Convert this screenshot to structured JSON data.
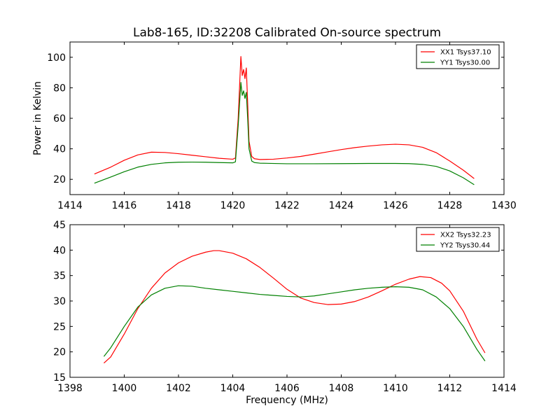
{
  "chart_data": [
    {
      "type": "line",
      "title": "Lab8-165, ID:32208 Calibrated On-source spectrum",
      "ylabel": "Power in Kelvin",
      "xlabel": "",
      "xlim": [
        1414,
        1430
      ],
      "ylim": [
        10,
        110
      ],
      "xticks": [
        1414,
        1416,
        1418,
        1420,
        1422,
        1424,
        1426,
        1428,
        1430
      ],
      "yticks": [
        20,
        40,
        60,
        80,
        100
      ],
      "legend_position": "top-right",
      "series": [
        {
          "name": "XX1 Tsys37.10",
          "color": "#ff0000",
          "points": [
            [
              1414.9,
              23.5
            ],
            [
              1415.5,
              28
            ],
            [
              1416,
              32.5
            ],
            [
              1416.5,
              36
            ],
            [
              1417,
              37.8
            ],
            [
              1417.5,
              37.6
            ],
            [
              1418,
              36.8
            ],
            [
              1418.5,
              35.8
            ],
            [
              1419,
              34.8
            ],
            [
              1419.5,
              33.8
            ],
            [
              1420,
              33.2
            ],
            [
              1420.1,
              34
            ],
            [
              1420.2,
              60
            ],
            [
              1420.3,
              100.5
            ],
            [
              1420.35,
              88
            ],
            [
              1420.4,
              92
            ],
            [
              1420.45,
              86
            ],
            [
              1420.5,
              93
            ],
            [
              1420.55,
              70
            ],
            [
              1420.6,
              45
            ],
            [
              1420.7,
              35
            ],
            [
              1420.8,
              33.5
            ],
            [
              1421,
              33
            ],
            [
              1421.5,
              33.2
            ],
            [
              1422,
              34
            ],
            [
              1422.5,
              35
            ],
            [
              1423,
              36.5
            ],
            [
              1423.5,
              38
            ],
            [
              1424,
              39.5
            ],
            [
              1424.5,
              40.8
            ],
            [
              1425,
              41.8
            ],
            [
              1425.5,
              42.6
            ],
            [
              1426,
              43
            ],
            [
              1426.5,
              42.6
            ],
            [
              1427,
              41
            ],
            [
              1427.5,
              37.5
            ],
            [
              1428,
              32
            ],
            [
              1428.5,
              26
            ],
            [
              1428.9,
              20.5
            ]
          ]
        },
        {
          "name": "YY1 Tsys30.00",
          "color": "#008000",
          "points": [
            [
              1414.9,
              17.5
            ],
            [
              1415.5,
              21.5
            ],
            [
              1416,
              25
            ],
            [
              1416.5,
              28
            ],
            [
              1417,
              29.8
            ],
            [
              1417.5,
              30.8
            ],
            [
              1418,
              31.2
            ],
            [
              1418.5,
              31.3
            ],
            [
              1419,
              31.2
            ],
            [
              1419.5,
              31
            ],
            [
              1420,
              30.8
            ],
            [
              1420.1,
              31.5
            ],
            [
              1420.2,
              55
            ],
            [
              1420.3,
              83.5
            ],
            [
              1420.35,
              75
            ],
            [
              1420.4,
              78
            ],
            [
              1420.45,
              73
            ],
            [
              1420.5,
              77
            ],
            [
              1420.55,
              60
            ],
            [
              1420.6,
              40
            ],
            [
              1420.7,
              32
            ],
            [
              1420.8,
              31
            ],
            [
              1421,
              30.6
            ],
            [
              1422,
              30.2
            ],
            [
              1423,
              30.2
            ],
            [
              1424,
              30.3
            ],
            [
              1425,
              30.4
            ],
            [
              1426,
              30.4
            ],
            [
              1426.5,
              30.3
            ],
            [
              1427,
              29.8
            ],
            [
              1427.5,
              28.5
            ],
            [
              1428,
              25.5
            ],
            [
              1428.5,
              21
            ],
            [
              1428.9,
              16.5
            ]
          ]
        }
      ]
    },
    {
      "type": "line",
      "title": "",
      "ylabel": "",
      "xlabel": "Frequency (MHz)",
      "xlim": [
        1398,
        1414
      ],
      "ylim": [
        15,
        45
      ],
      "xticks": [
        1398,
        1400,
        1402,
        1404,
        1406,
        1408,
        1410,
        1412,
        1414
      ],
      "yticks": [
        15,
        20,
        25,
        30,
        35,
        40,
        45
      ],
      "legend_position": "top-right",
      "series": [
        {
          "name": "XX2 Tsys32.23",
          "color": "#ff0000",
          "points": [
            [
              1399.25,
              17.8
            ],
            [
              1399.5,
              19
            ],
            [
              1400,
              23.5
            ],
            [
              1400.5,
              28.5
            ],
            [
              1401,
              32.5
            ],
            [
              1401.5,
              35.5
            ],
            [
              1402,
              37.5
            ],
            [
              1402.5,
              38.8
            ],
            [
              1403,
              39.6
            ],
            [
              1403.3,
              39.9
            ],
            [
              1403.5,
              39.9
            ],
            [
              1404,
              39.4
            ],
            [
              1404.5,
              38.3
            ],
            [
              1405,
              36.6
            ],
            [
              1405.5,
              34.5
            ],
            [
              1406,
              32.3
            ],
            [
              1406.5,
              30.6
            ],
            [
              1407,
              29.7
            ],
            [
              1407.5,
              29.3
            ],
            [
              1408,
              29.4
            ],
            [
              1408.5,
              29.9
            ],
            [
              1409,
              30.8
            ],
            [
              1409.5,
              32
            ],
            [
              1410,
              33.3
            ],
            [
              1410.5,
              34.3
            ],
            [
              1410.9,
              34.8
            ],
            [
              1411.3,
              34.6
            ],
            [
              1411.7,
              33.5
            ],
            [
              1412,
              32
            ],
            [
              1412.5,
              28
            ],
            [
              1413,
              22.5
            ],
            [
              1413.3,
              19.8
            ]
          ]
        },
        {
          "name": "YY2 Tsys30.44",
          "color": "#008000",
          "points": [
            [
              1399.25,
              19.1
            ],
            [
              1399.5,
              20.8
            ],
            [
              1400,
              25
            ],
            [
              1400.5,
              28.8
            ],
            [
              1401,
              31.2
            ],
            [
              1401.5,
              32.5
            ],
            [
              1402,
              33
            ],
            [
              1402.5,
              32.9
            ],
            [
              1403,
              32.5
            ],
            [
              1403.5,
              32.2
            ],
            [
              1404,
              31.9
            ],
            [
              1404.5,
              31.6
            ],
            [
              1405,
              31.3
            ],
            [
              1405.5,
              31.1
            ],
            [
              1406,
              30.9
            ],
            [
              1406.5,
              30.8
            ],
            [
              1407,
              31
            ],
            [
              1407.5,
              31.4
            ],
            [
              1408,
              31.8
            ],
            [
              1408.5,
              32.2
            ],
            [
              1409,
              32.5
            ],
            [
              1409.5,
              32.7
            ],
            [
              1410,
              32.8
            ],
            [
              1410.5,
              32.7
            ],
            [
              1411,
              32.2
            ],
            [
              1411.5,
              30.8
            ],
            [
              1412,
              28.5
            ],
            [
              1412.5,
              25
            ],
            [
              1413,
              20.5
            ],
            [
              1413.3,
              18.2
            ]
          ]
        }
      ]
    }
  ]
}
